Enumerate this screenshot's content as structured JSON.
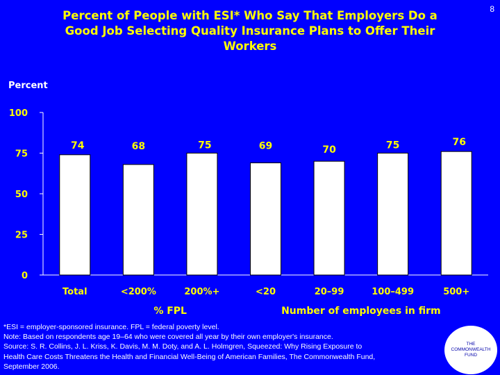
{
  "slide_number": "8",
  "chart_data": {
    "type": "bar",
    "title": "Percent of People with ESI* Who Say That Employers Do a Good Job Selecting Quality Insurance Plans to Offer Their Workers",
    "title_lines": [
      "Percent of People with ESI* Who Say That Employers Do a",
      "Good Job Selecting Quality Insurance Plans to Offer Their",
      "Workers"
    ],
    "ylabel": "Percent",
    "ylim": [
      0,
      100
    ],
    "yticks": [
      0,
      25,
      50,
      75,
      100
    ],
    "categories": [
      "Total",
      "<200%",
      "200%+",
      "<20",
      "20–99",
      "100–499",
      "500+"
    ],
    "values": [
      74,
      68,
      75,
      69,
      70,
      75,
      76
    ],
    "groups": [
      {
        "label": "% FPL",
        "categories": [
          "<200%",
          "200%+"
        ]
      },
      {
        "label": "Number of employees in firm",
        "categories": [
          "<20",
          "20–99",
          "100–499",
          "500+"
        ]
      }
    ],
    "colors": {
      "bar": "#ffffff",
      "bar_border": "#000000",
      "text": "#ffff00",
      "axis": "#ffffff",
      "background": "#0000ff"
    }
  },
  "notes": [
    "*ESI = employer-sponsored insurance. FPL = federal poverty level.",
    "Note: Based on respondents age 19–64 who were covered all year by their own employer's insurance.",
    "Source: S. R. Collins, J. L. Kriss, K. Davis, M. M. Doty, and A. L. Holmgren, Squeezed: Why Rising Exposure to",
    "Health Care Costs Threatens the Health and Financial Well-Being of American Families, The Commonwealth Fund,",
    "September 2006."
  ],
  "logo": {
    "lines": [
      "THE",
      "COMMONWEALTH",
      "FUND"
    ]
  }
}
